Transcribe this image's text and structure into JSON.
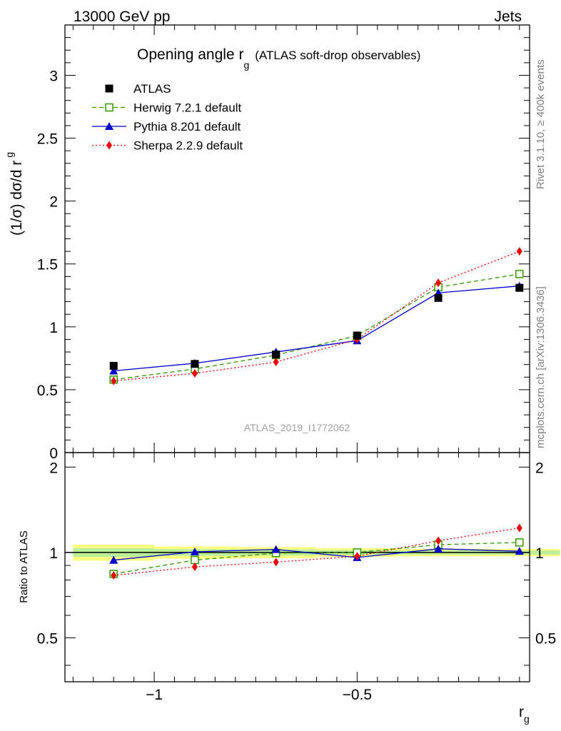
{
  "header": {
    "energy": "13000 GeV pp",
    "category": "Jets"
  },
  "side_labels": {
    "rivet": "Rivet 3.1.10, ≥ 400k events",
    "mcplots": "mcplots.cern.ch [arXiv:1306.3436]"
  },
  "chart_data": [
    {
      "type": "line",
      "title_main": "Opening angle r",
      "title_sub": "g",
      "title_extra": "(ATLAS soft-drop observables)",
      "ylabel_main": "(1/σ) dσ/d r",
      "ylabel_sub": "g",
      "watermark": "ATLAS_2019_I1772062",
      "xlim": [
        -1.22,
        -0.075
      ],
      "ylim": [
        0,
        3.4
      ],
      "yticks": [
        0,
        0.5,
        1,
        1.5,
        2,
        2.5,
        3
      ],
      "ytick_labels": [
        "0",
        "0.5",
        "1",
        "1.5",
        "2",
        "2.5",
        "3"
      ],
      "legend_position": "top-left",
      "x": [
        -1.1,
        -0.9,
        -0.7,
        -0.5,
        -0.3,
        -0.1
      ],
      "data": {
        "name": "ATLAS",
        "color": "#000000",
        "values": [
          0.69,
          0.705,
          0.78,
          0.93,
          1.23,
          1.31
        ],
        "errors": [
          0.015,
          0.015,
          0.02,
          0.02,
          0.025,
          0.03
        ],
        "band_half": [
          0.045,
          0.035,
          0.035,
          0.03,
          0.035,
          0.04
        ]
      },
      "series": [
        {
          "name": "Herwig 7.2.1 default",
          "color": "#339900",
          "dash": "6,4",
          "marker": "open-square",
          "values": [
            0.58,
            0.665,
            0.775,
            0.93,
            1.315,
            1.42
          ],
          "errors": [
            0.01,
            0.01,
            0.01,
            0.01,
            0.015,
            0.02
          ]
        },
        {
          "name": "Pythia 8.201 default",
          "color": "#0000cc",
          "dash": "",
          "marker": "triangle",
          "values": [
            0.65,
            0.71,
            0.8,
            0.89,
            1.27,
            1.325
          ],
          "errors": [
            0.015,
            0.015,
            0.02,
            0.015,
            0.02,
            0.025
          ]
        },
        {
          "name": "Sherpa 2.2.9 default",
          "color": "#ee0000",
          "dash": "2,3",
          "marker": "diamond",
          "values": [
            0.57,
            0.63,
            0.72,
            0.9,
            1.35,
            1.6
          ],
          "errors": [
            0.01,
            0.01,
            0.01,
            0.01,
            0.015,
            0.02
          ]
        }
      ]
    },
    {
      "type": "line",
      "ylabel": "Ratio to ATLAS",
      "xlabel_main": "r",
      "xlabel_sub": "g",
      "xlim": [
        -1.22,
        -0.075
      ],
      "ylim": [
        0.35,
        2.25
      ],
      "yticks": [
        0.5,
        1,
        2
      ],
      "ytick_labels": [
        "0.5",
        "1",
        "2"
      ],
      "xticks": [
        -1,
        -0.5
      ],
      "xtick_labels": [
        "−1",
        "−0.5"
      ],
      "x": [
        -1.1,
        -0.9,
        -0.7,
        -0.5,
        -0.3,
        -0.1
      ],
      "band_half": [
        0.065,
        0.05,
        0.045,
        0.035,
        0.03,
        0.03
      ],
      "series": [
        {
          "name": "Herwig 7.2.1 default",
          "color": "#339900",
          "dash": "6,4",
          "marker": "open-square",
          "values": [
            0.84,
            0.94,
            0.995,
            1.0,
            1.065,
            1.085
          ],
          "errors": [
            0.01,
            0.01,
            0.01,
            0.01,
            0.012,
            0.015
          ]
        },
        {
          "name": "Pythia 8.201 default",
          "color": "#0000cc",
          "dash": "",
          "marker": "triangle",
          "values": [
            0.94,
            1.005,
            1.025,
            0.96,
            1.03,
            1.01
          ],
          "errors": [
            0.03,
            0.025,
            0.03,
            0.02,
            0.025,
            0.025
          ]
        },
        {
          "name": "Sherpa 2.2.9 default",
          "color": "#ee0000",
          "dash": "2,3",
          "marker": "diamond",
          "values": [
            0.83,
            0.89,
            0.925,
            0.97,
            1.1,
            1.22
          ],
          "errors": [
            0.01,
            0.01,
            0.01,
            0.01,
            0.012,
            0.015
          ]
        }
      ]
    }
  ]
}
